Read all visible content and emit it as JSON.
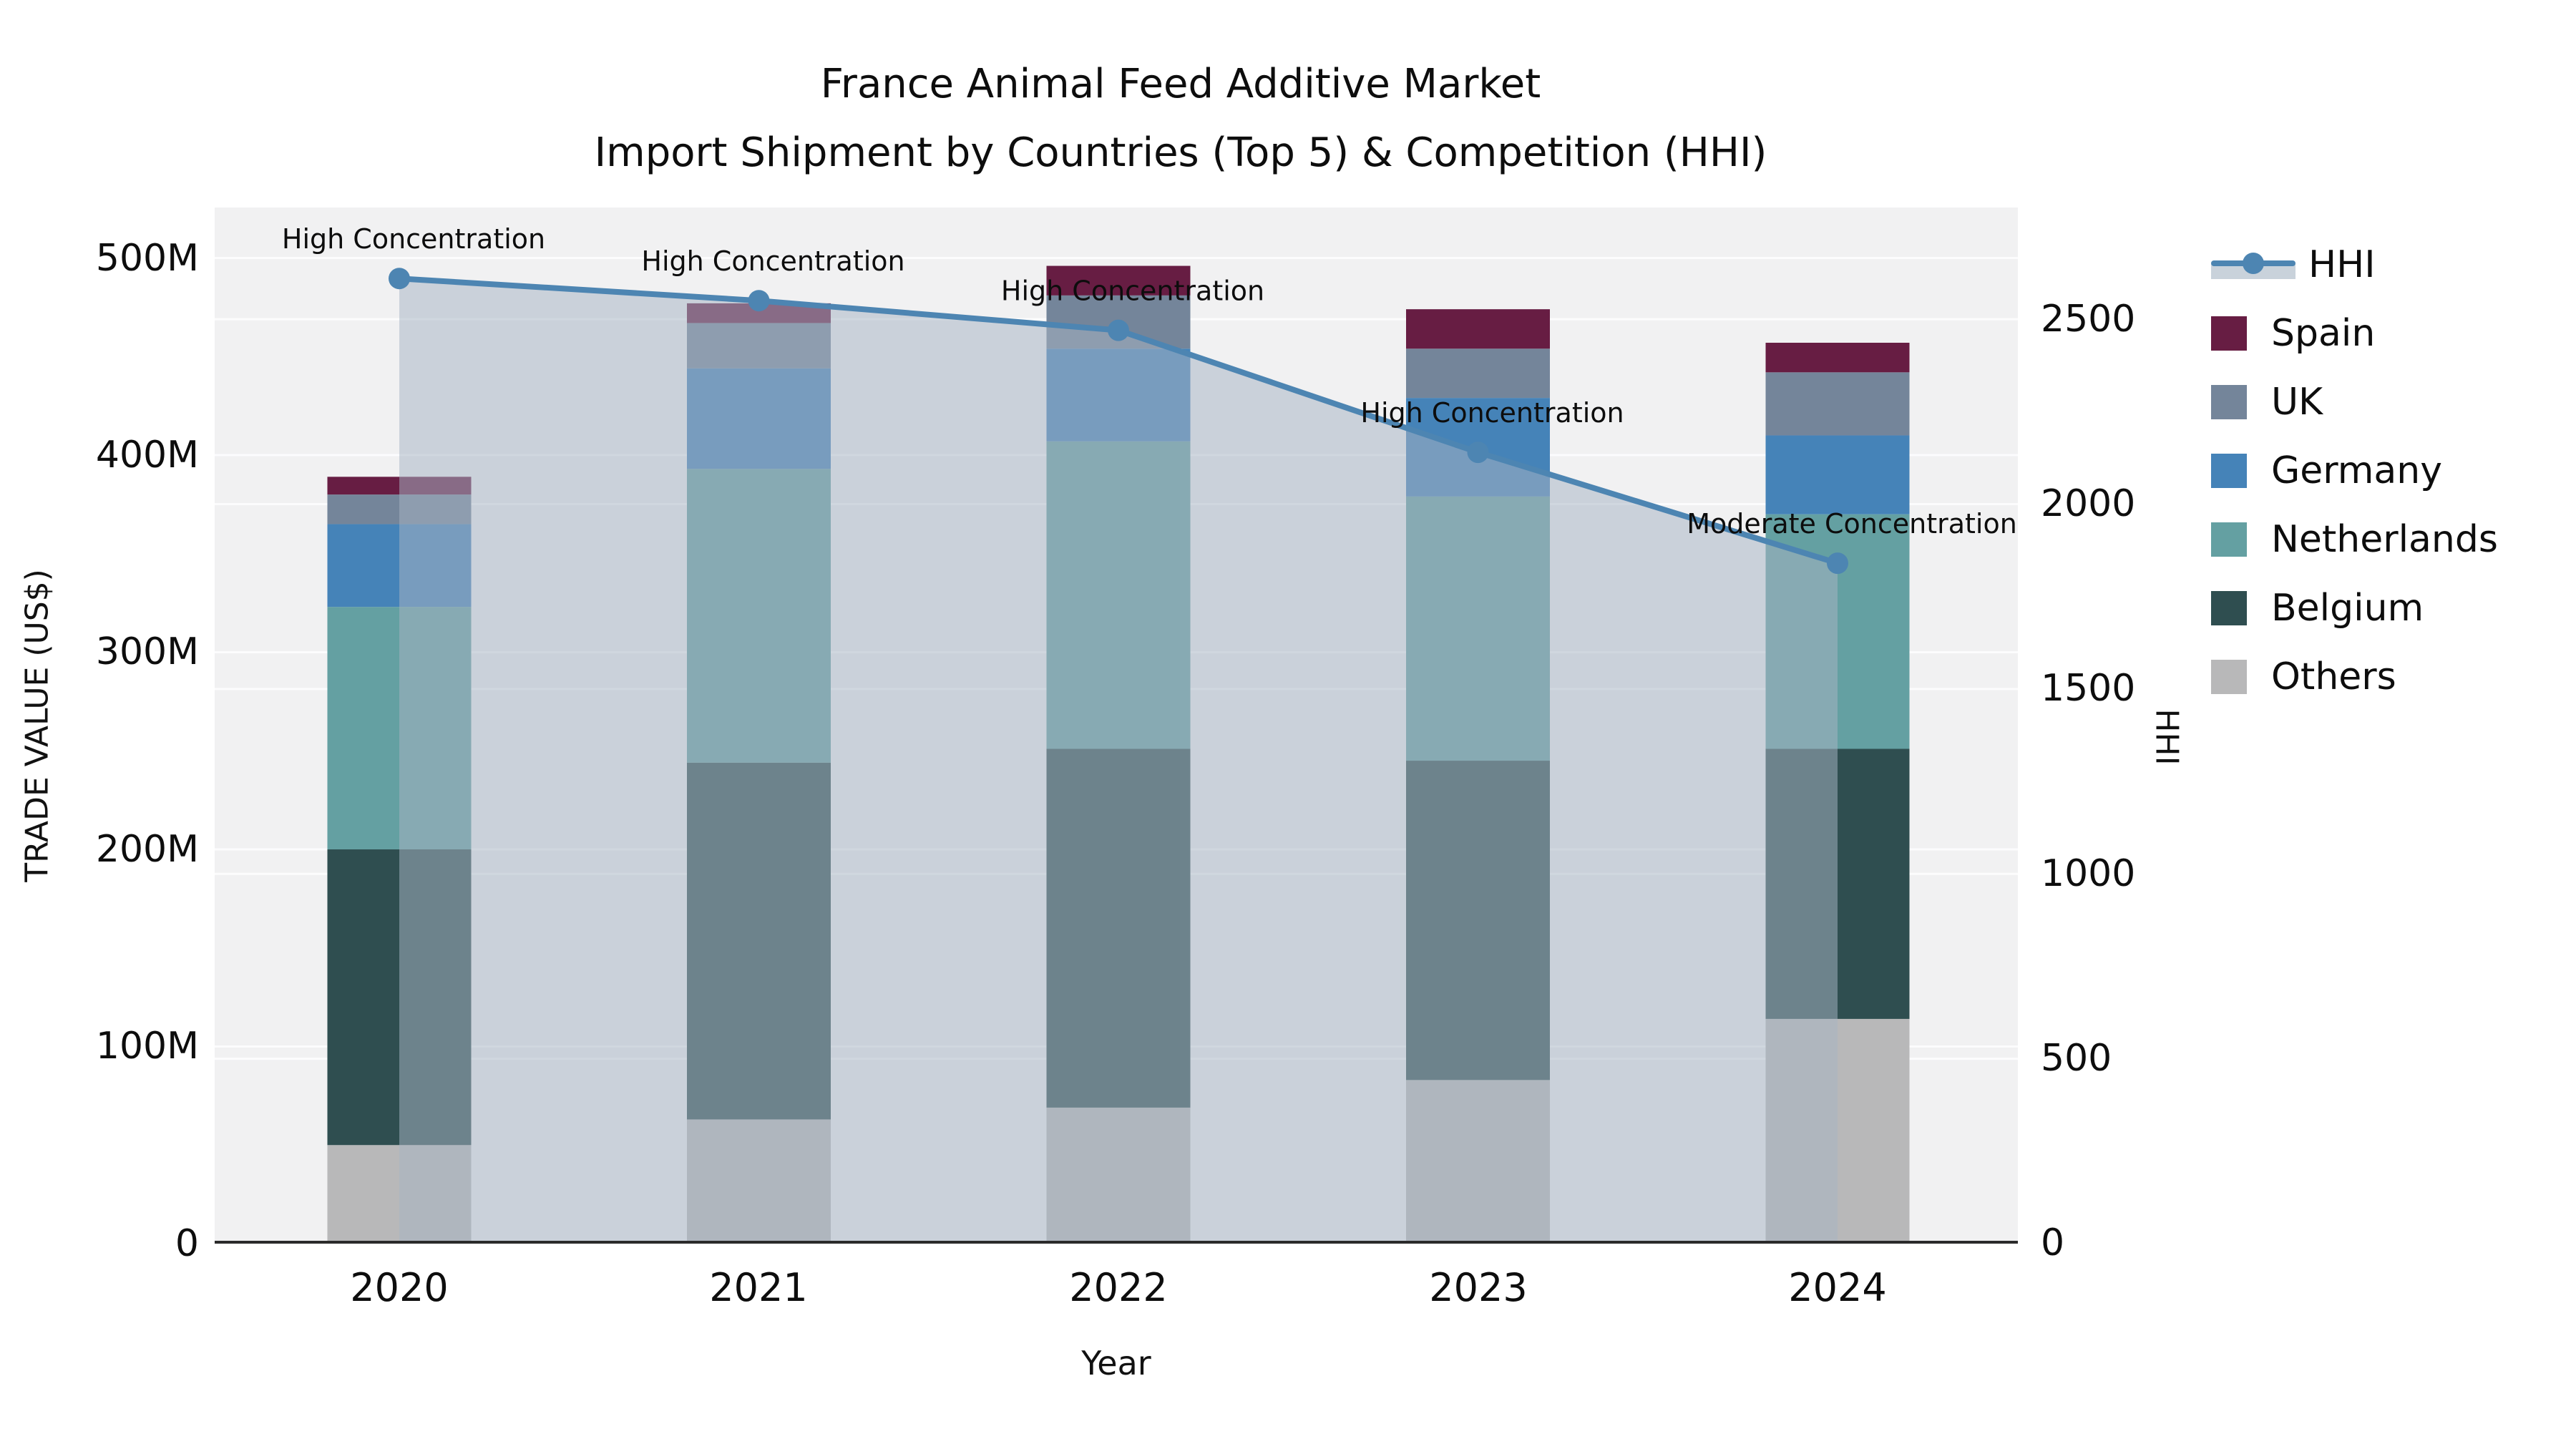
{
  "title": {
    "line1": "France Animal Feed Additive Market",
    "line2": "Import Shipment by Countries (Top 5) & Competition (HHI)"
  },
  "axes": {
    "left": {
      "label": "TRADE VALUE (US$)",
      "ticks": [
        "0",
        "100M",
        "200M",
        "300M",
        "400M",
        "500M"
      ]
    },
    "right": {
      "label": "HHI",
      "ticks": [
        "0",
        "500",
        "1000",
        "1500",
        "2000",
        "2500"
      ]
    },
    "x": {
      "label": "Year"
    }
  },
  "legend": {
    "items": [
      {
        "label": "HHI",
        "type": "line",
        "color": "#4d85b2",
        "band_color": "#c9d2db"
      },
      {
        "label": "Spain",
        "type": "bar",
        "color": "#671d43"
      },
      {
        "label": "UK",
        "type": "bar",
        "color": "#74859a"
      },
      {
        "label": "Germany",
        "type": "bar",
        "color": "#4583b8"
      },
      {
        "label": "Netherlands",
        "type": "bar",
        "color": "#64a0a2"
      },
      {
        "label": "Belgium",
        "type": "bar",
        "color": "#2f4e50"
      },
      {
        "label": "Others",
        "type": "bar",
        "color": "#b8b8b9"
      }
    ]
  },
  "chart_data": {
    "type": "combo-stacked-bar-line",
    "x": [
      "2020",
      "2021",
      "2022",
      "2023",
      "2024"
    ],
    "stack_order_bottom_to_top": [
      "Others",
      "Belgium",
      "Netherlands",
      "Germany",
      "UK",
      "Spain"
    ],
    "series": [
      {
        "name": "Spain",
        "type": "bar",
        "unit": "M US$",
        "values": [
          9,
          10,
          15,
          20,
          15
        ]
      },
      {
        "name": "UK",
        "type": "bar",
        "unit": "M US$",
        "values": [
          15,
          23,
          27,
          25,
          32
        ]
      },
      {
        "name": "Germany",
        "type": "bar",
        "unit": "M US$",
        "values": [
          42,
          51,
          47,
          50,
          40
        ]
      },
      {
        "name": "Netherlands",
        "type": "bar",
        "unit": "M US$",
        "values": [
          123,
          149,
          156,
          134,
          119
        ]
      },
      {
        "name": "Belgium",
        "type": "bar",
        "unit": "M US$",
        "values": [
          150,
          181,
          182,
          162,
          137
        ]
      },
      {
        "name": "Others",
        "type": "bar",
        "unit": "M US$",
        "values": [
          50,
          63,
          69,
          83,
          114
        ]
      }
    ],
    "bar_totals": [
      389,
      477,
      496,
      474,
      457
    ],
    "line_series": {
      "name": "HHI",
      "type": "line",
      "values": [
        2610,
        2550,
        2470,
        2140,
        1840
      ],
      "axis": "right"
    },
    "area_under_line": true,
    "annotations": [
      {
        "x": "2020",
        "text": "High Concentration"
      },
      {
        "x": "2021",
        "text": "High Concentration"
      },
      {
        "x": "2022",
        "text": "High Concentration"
      },
      {
        "x": "2023",
        "text": "High Concentration"
      },
      {
        "x": "2024",
        "text": "Moderate Concentration"
      }
    ],
    "ylim_left_M": [
      0,
      525
    ],
    "ylim_right": [
      0,
      2800
    ],
    "grid": true,
    "legend_position": "outside-right-top"
  }
}
